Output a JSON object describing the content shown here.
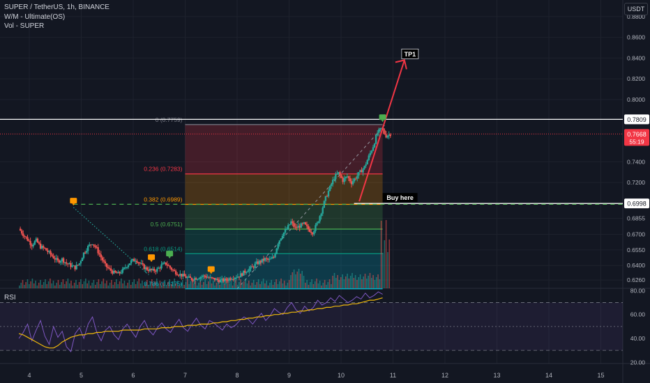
{
  "header": {
    "symbol_line": "SUPER / TetherUS, 1h, BINANCE",
    "indicator_1": "W/M - Ultimate(OS)",
    "indicator_2": "Vol - SUPER",
    "currency": "USDT"
  },
  "rsi_label": "RSI",
  "chart_data": {
    "type": "candlestick",
    "x_ticks": [
      "4",
      "5",
      "6",
      "7",
      "8",
      "9",
      "10",
      "11",
      "12",
      "13",
      "14",
      "15"
    ],
    "price_ticks": [
      "0.8800",
      "0.8600",
      "0.8400",
      "0.8200",
      "0.8000",
      "0.7400",
      "0.7200",
      "0.6855",
      "0.6700",
      "0.6550",
      "0.6400",
      "0.6260"
    ],
    "price_range": [
      0.618,
      0.896
    ],
    "price_path": [
      0.6755,
      0.67,
      0.665,
      0.66,
      0.664,
      0.658,
      0.656,
      0.652,
      0.648,
      0.644,
      0.646,
      0.642,
      0.64,
      0.638,
      0.642,
      0.652,
      0.658,
      0.662,
      0.656,
      0.648,
      0.64,
      0.636,
      0.633,
      0.632,
      0.635,
      0.64,
      0.644,
      0.646,
      0.642,
      0.638,
      0.636,
      0.635,
      0.636,
      0.64,
      0.642,
      0.638,
      0.634,
      0.632,
      0.63,
      0.628,
      0.627,
      0.628,
      0.629,
      0.63,
      0.628,
      0.627,
      0.626,
      0.6255,
      0.626,
      0.628,
      0.629,
      0.63,
      0.633,
      0.636,
      0.638,
      0.642,
      0.644,
      0.646,
      0.645,
      0.648,
      0.662,
      0.67,
      0.675,
      0.682,
      0.676,
      0.678,
      0.68,
      0.675,
      0.672,
      0.68,
      0.692,
      0.705,
      0.715,
      0.725,
      0.729,
      0.722,
      0.726,
      0.72,
      0.725,
      0.73,
      0.735,
      0.745,
      0.755,
      0.768,
      0.772,
      0.765,
      0.7668
    ],
    "path_start_day": 3.8,
    "path_end_day": 10.95,
    "horizontal_lines": [
      {
        "price": 0.7809,
        "label": "0.7809",
        "color": "#ffffff"
      },
      {
        "price": 0.6998,
        "label": "0.6998",
        "color": "#ffffff"
      }
    ],
    "current_price": {
      "value": 0.7668,
      "label": "0.7668",
      "countdown": "55:19",
      "color": "#f23645"
    },
    "buy_level": 0.699,
    "fibonacci": {
      "start_day": 7.0,
      "end_day": 10.8,
      "levels": [
        {
          "ratio": "0",
          "price": 0.7759,
          "label": "0 (0.7759)",
          "color": "#787b86"
        },
        {
          "ratio": "0.236",
          "price": 0.7283,
          "label": "0.236 (0.7283)",
          "color": "#f23645"
        },
        {
          "ratio": "0.382",
          "price": 0.6989,
          "label": "0.382 (0.6989)",
          "color": "#ff9800"
        },
        {
          "ratio": "0.5",
          "price": 0.6751,
          "label": "0.5 (0.6751)",
          "color": "#4caf50"
        },
        {
          "ratio": "0.618",
          "price": 0.6514,
          "label": "0.618 (0.6514)",
          "color": "#089981"
        },
        {
          "ratio": "0.786",
          "price": 0.6175,
          "label": "0.786 (0.6175)",
          "color": "#00bcd4"
        }
      ]
    },
    "annotations": {
      "tp1": "TP1",
      "buy_here": "Buy here"
    },
    "rsi": {
      "ticks": [
        "80.00",
        "60.00",
        "40.00",
        "20.00"
      ],
      "range": [
        19,
        82
      ],
      "bands": [
        70,
        50,
        30
      ],
      "values": [
        40,
        45,
        52,
        38,
        47,
        55,
        42,
        35,
        50,
        41,
        46,
        33,
        29,
        44,
        49,
        40,
        52,
        58,
        45,
        38,
        47,
        50,
        43,
        39,
        48,
        52,
        46,
        41,
        50,
        55,
        47,
        43,
        49,
        53,
        48,
        45,
        51,
        56,
        49,
        46,
        52,
        57,
        51,
        48,
        55,
        53,
        50,
        47,
        52,
        49,
        51,
        55,
        58,
        56,
        52,
        57,
        61,
        55,
        59,
        65,
        62,
        60,
        66,
        70,
        64,
        61,
        67,
        63,
        66,
        72,
        68,
        70,
        74,
        71,
        76,
        73,
        70,
        72,
        75,
        73,
        78,
        74,
        76,
        79,
        77
      ],
      "ma_values": [
        44,
        43,
        41,
        39,
        37,
        35,
        33,
        32,
        32,
        34,
        37,
        39,
        41,
        42,
        43,
        43,
        44,
        44,
        45,
        45,
        46,
        46,
        46,
        46,
        47,
        47,
        47,
        47,
        47,
        48,
        48,
        48,
        48,
        49,
        49,
        49,
        50,
        50,
        50,
        51,
        51,
        51,
        52,
        52,
        52,
        53,
        53,
        54,
        54,
        55,
        55,
        56,
        56,
        57,
        57,
        58,
        58,
        59,
        59,
        60,
        60,
        61,
        61,
        62,
        62,
        63,
        63,
        64,
        64,
        65,
        65,
        66,
        66,
        67,
        67,
        68,
        68,
        69,
        69,
        70,
        71,
        72,
        72,
        73,
        74
      ]
    },
    "colors": {
      "up": "#26a69a",
      "down": "#ef5350",
      "rsi": "#7e57c2",
      "rsi_ma": "#f0b90b",
      "target_arrow": "#f23645"
    }
  }
}
